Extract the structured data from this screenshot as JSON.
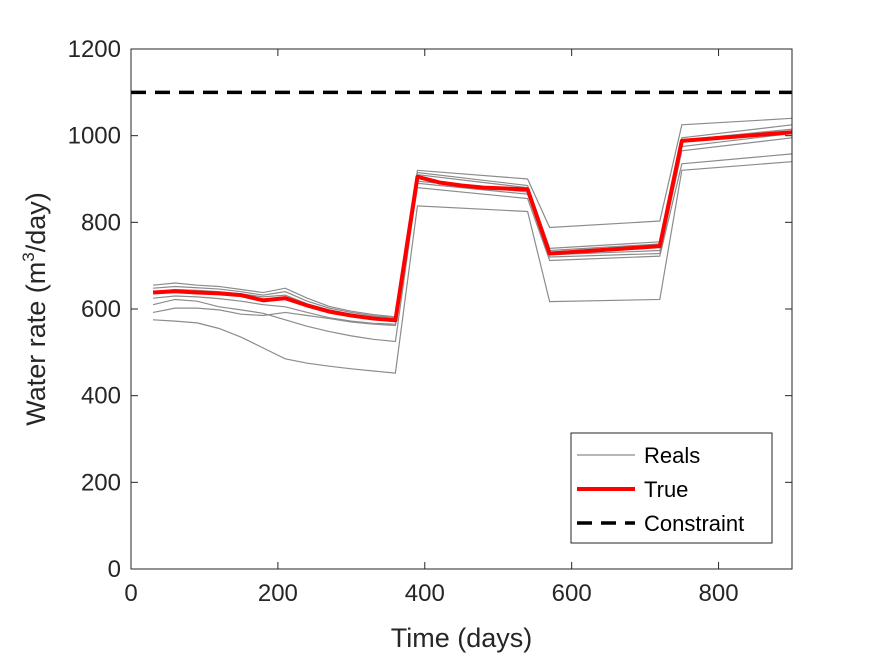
{
  "chart_data": {
    "type": "line",
    "xlabel": "Time (days)",
    "ylabel_main": "Water rate (m",
    "ylabel_sup": "3",
    "ylabel_tail": "/day)",
    "xlim": [
      0,
      900
    ],
    "ylim": [
      0,
      1200
    ],
    "xticks": [
      0,
      200,
      400,
      600,
      800
    ],
    "yticks": [
      0,
      200,
      400,
      600,
      800,
      1000,
      1200
    ],
    "grid": false,
    "legend_position": "bottom-right",
    "legend": [
      {
        "label": "Reals",
        "color": "#8c8c8c",
        "style": "thin"
      },
      {
        "label": "True",
        "color": "#ff0000",
        "style": "thick"
      },
      {
        "label": "Constraint",
        "color": "#000000",
        "style": "dashed"
      }
    ],
    "constraint": {
      "name": "Constraint",
      "value": 1100,
      "color": "#000000"
    },
    "true_series": {
      "name": "True",
      "color": "#ff0000",
      "x": [
        30,
        60,
        90,
        120,
        150,
        180,
        210,
        240,
        270,
        300,
        330,
        360,
        390,
        420,
        450,
        480,
        510,
        540,
        570,
        720,
        750,
        900
      ],
      "y": [
        638,
        641,
        638,
        636,
        632,
        620,
        625,
        608,
        594,
        585,
        578,
        574,
        905,
        892,
        885,
        880,
        878,
        876,
        728,
        745,
        988,
        1008
      ]
    },
    "reals": [
      {
        "name": "Reals",
        "color": "#8c8c8c",
        "x": [
          30,
          60,
          90,
          120,
          150,
          180,
          210,
          240,
          270,
          300,
          330,
          360,
          390,
          540,
          570,
          720,
          750,
          900
        ],
        "y": [
          575,
          572,
          568,
          555,
          535,
          510,
          485,
          475,
          468,
          462,
          457,
          452,
          838,
          825,
          617,
          622,
          920,
          940
        ]
      },
      {
        "name": "Reals",
        "color": "#8c8c8c",
        "x": [
          30,
          60,
          90,
          120,
          150,
          180,
          210,
          240,
          270,
          300,
          330,
          360,
          390,
          540,
          570,
          720,
          750,
          900
        ],
        "y": [
          592,
          602,
          602,
          598,
          588,
          585,
          592,
          585,
          578,
          570,
          565,
          562,
          880,
          855,
          712,
          722,
          935,
          958
        ]
      },
      {
        "name": "Reals",
        "color": "#8c8c8c",
        "x": [
          30,
          60,
          90,
          120,
          150,
          180,
          210,
          240,
          270,
          300,
          330,
          360,
          390,
          540,
          570,
          720,
          750,
          900
        ],
        "y": [
          610,
          622,
          618,
          605,
          598,
          590,
          575,
          560,
          548,
          538,
          530,
          525,
          890,
          865,
          720,
          728,
          965,
          995
        ]
      },
      {
        "name": "Reals",
        "color": "#8c8c8c",
        "x": [
          30,
          60,
          90,
          120,
          150,
          180,
          210,
          240,
          270,
          300,
          330,
          360,
          390,
          540,
          570,
          720,
          750,
          900
        ],
        "y": [
          625,
          630,
          628,
          624,
          618,
          610,
          605,
          592,
          580,
          572,
          567,
          565,
          895,
          870,
          725,
          735,
          975,
          1005
        ]
      },
      {
        "name": "Reals",
        "color": "#8c8c8c",
        "x": [
          30,
          60,
          90,
          120,
          150,
          180,
          210,
          240,
          270,
          300,
          330,
          360,
          390,
          540,
          570,
          720,
          750,
          900
        ],
        "y": [
          640,
          645,
          643,
          640,
          635,
          628,
          632,
          612,
          598,
          588,
          580,
          576,
          910,
          880,
          735,
          750,
          990,
          1015
        ]
      },
      {
        "name": "Reals",
        "color": "#8c8c8c",
        "x": [
          30,
          60,
          90,
          120,
          150,
          180,
          210,
          240,
          270,
          300,
          330,
          360,
          390,
          540,
          570,
          720,
          750,
          900
        ],
        "y": [
          648,
          652,
          649,
          646,
          640,
          632,
          640,
          618,
          602,
          592,
          584,
          580,
          915,
          885,
          740,
          755,
          995,
          1025
        ]
      },
      {
        "name": "Reals",
        "color": "#8c8c8c",
        "x": [
          30,
          60,
          90,
          120,
          150,
          180,
          210,
          240,
          270,
          300,
          330,
          360,
          390,
          540,
          570,
          720,
          750,
          900
        ],
        "y": [
          655,
          660,
          655,
          652,
          645,
          638,
          648,
          625,
          606,
          595,
          587,
          582,
          920,
          900,
          788,
          803,
          1025,
          1040
        ]
      }
    ]
  }
}
